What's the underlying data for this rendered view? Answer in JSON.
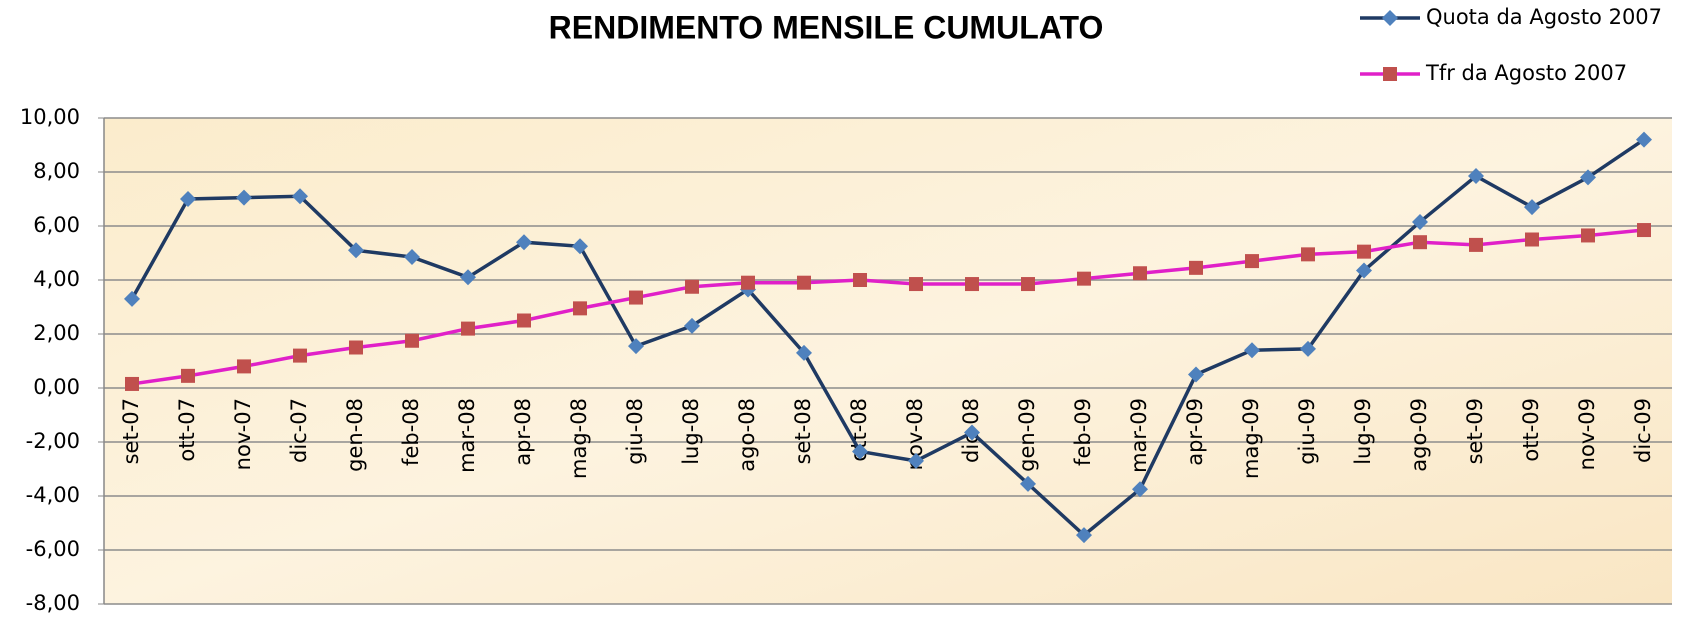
{
  "chart_data": {
    "type": "line",
    "title": "RENDIMENTO MENSILE CUMULATO",
    "categories": [
      "set-07",
      "ott-07",
      "nov-07",
      "dic-07",
      "gen-08",
      "feb-08",
      "mar-08",
      "apr-08",
      "mag-08",
      "giu-08",
      "lug-08",
      "ago-08",
      "set-08",
      "ott-08",
      "nov-08",
      "dic-08",
      "gen-09",
      "feb-09",
      "mar-09",
      "apr-09",
      "mag-09",
      "giu-09",
      "lug-09",
      "ago-09",
      "set-09",
      "ott-09",
      "nov-09",
      "dic-09"
    ],
    "series": [
      {
        "name": "Quota da Agosto 2007",
        "color": "#1f3a63",
        "marker_color": "#4f81bd",
        "marker": "diamond",
        "values": [
          3.3,
          7.0,
          7.05,
          7.1,
          5.1,
          4.85,
          4.1,
          5.4,
          5.25,
          1.55,
          2.3,
          3.65,
          1.3,
          -2.35,
          -2.7,
          -1.65,
          -3.55,
          -5.45,
          -3.75,
          0.5,
          1.4,
          1.45,
          4.35,
          6.15,
          7.85,
          6.7,
          7.8,
          9.2
        ]
      },
      {
        "name": "Tfr da Agosto 2007",
        "color": "#e020c8",
        "marker_color": "#c0504d",
        "marker": "square",
        "values": [
          0.15,
          0.45,
          0.8,
          1.2,
          1.5,
          1.75,
          2.2,
          2.5,
          2.95,
          3.35,
          3.75,
          3.9,
          3.9,
          4.0,
          3.85,
          3.85,
          3.85,
          4.05,
          4.25,
          4.45,
          4.7,
          4.95,
          5.05,
          5.4,
          5.3,
          5.5,
          5.65,
          5.85
        ]
      }
    ],
    "ylim": [
      -8,
      10
    ],
    "yticks": [
      {
        "value": -8,
        "label": "-8,00"
      },
      {
        "value": -6,
        "label": "-6,00"
      },
      {
        "value": -4,
        "label": "-4,00"
      },
      {
        "value": -2,
        "label": "-2,00"
      },
      {
        "value": 0,
        "label": "0,00"
      },
      {
        "value": 2,
        "label": "2,00"
      },
      {
        "value": 4,
        "label": "4,00"
      },
      {
        "value": 6,
        "label": "6,00"
      },
      {
        "value": 8,
        "label": "8,00"
      },
      {
        "value": 10,
        "label": "10,00"
      }
    ],
    "grid": true,
    "legend": "top-right"
  }
}
